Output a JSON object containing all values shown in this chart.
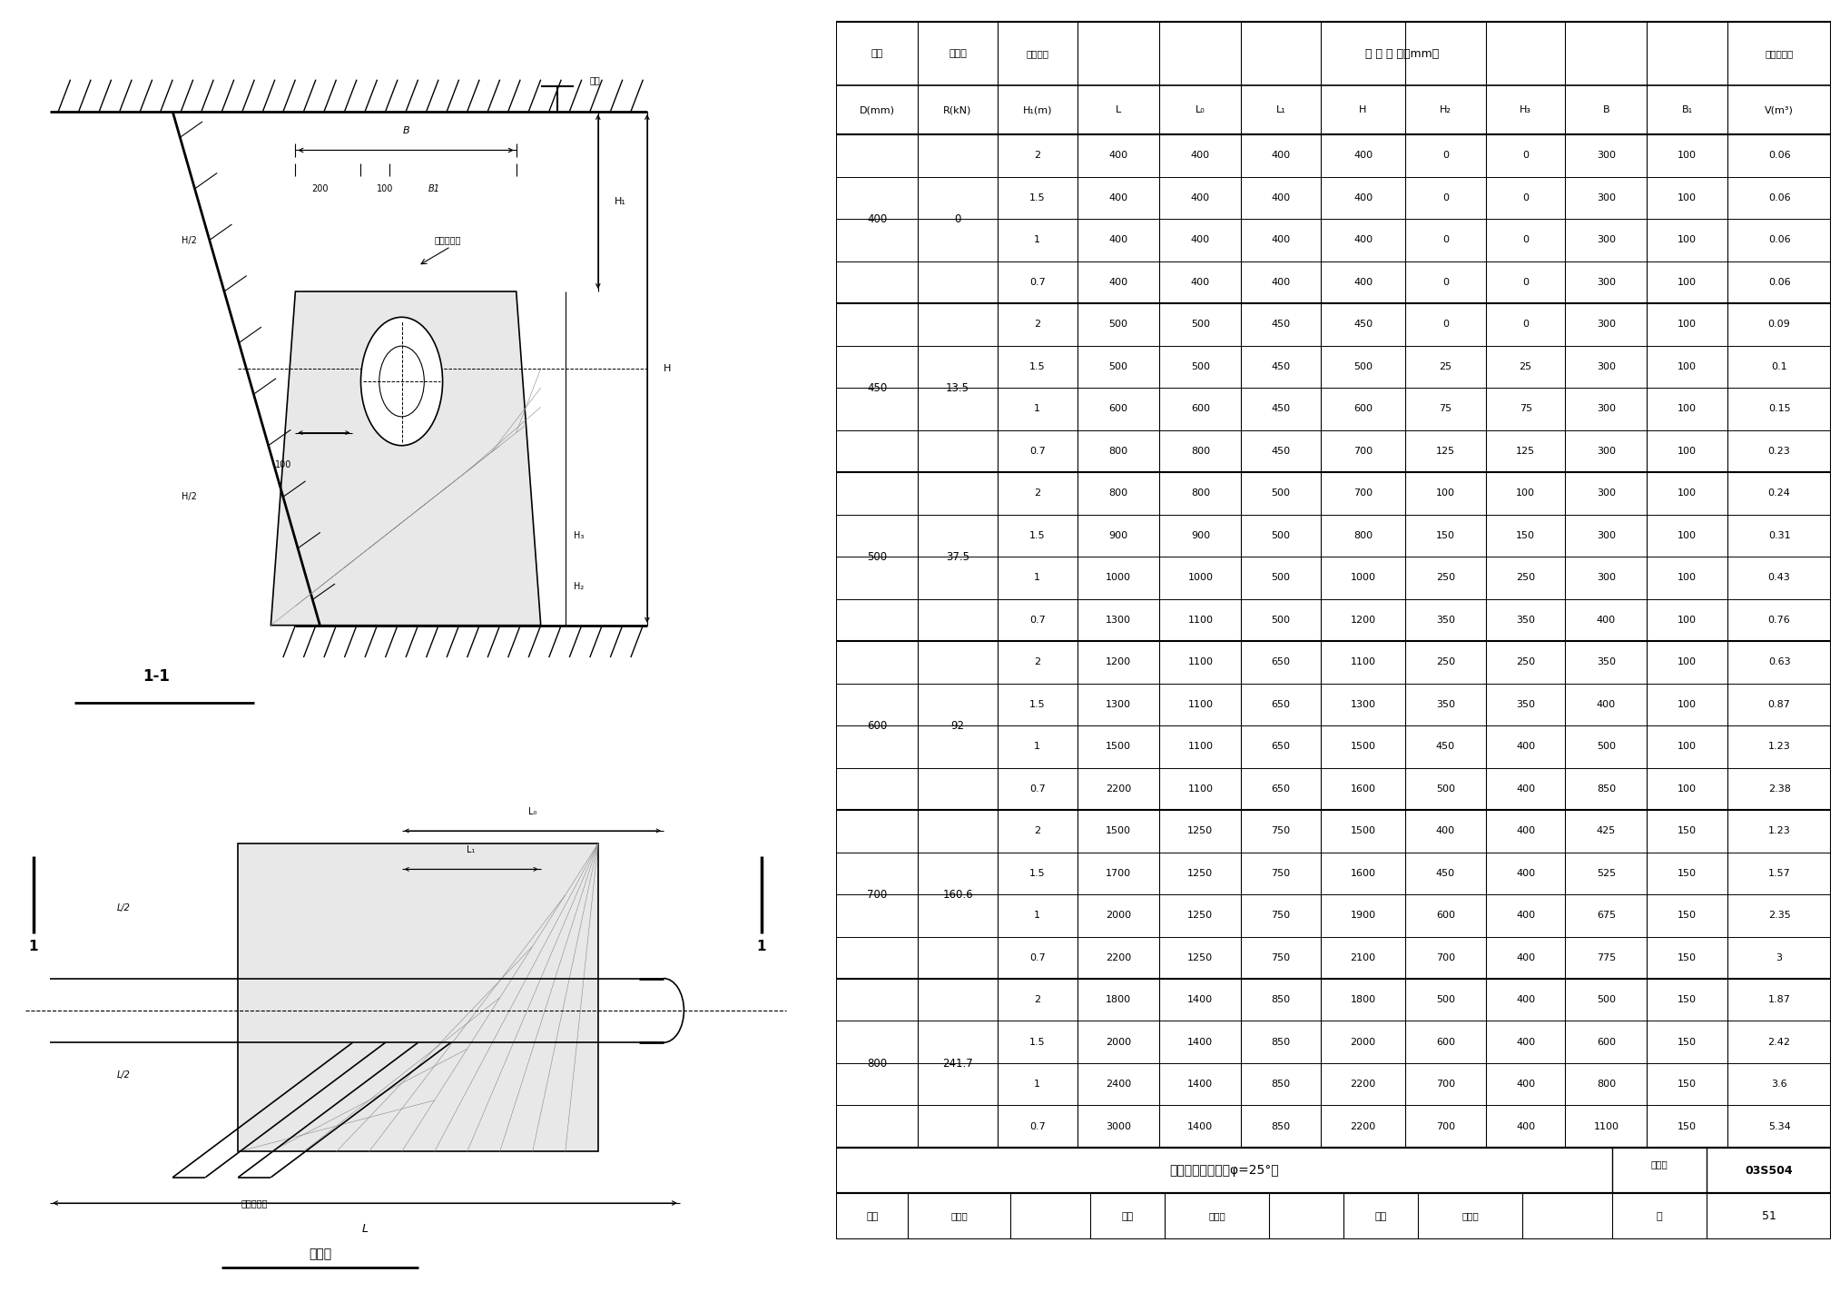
{
  "title": "水平叉管支墩图（φ=25°）",
  "atlas_no": "03S504",
  "page": "51",
  "table_data": [
    [
      400,
      "0",
      2,
      400,
      400,
      400,
      400,
      0,
      0,
      300,
      100,
      "0.06"
    ],
    [
      400,
      "0",
      1.5,
      400,
      400,
      400,
      400,
      0,
      0,
      300,
      100,
      "0.06"
    ],
    [
      400,
      "0",
      1,
      400,
      400,
      400,
      400,
      0,
      0,
      300,
      100,
      "0.06"
    ],
    [
      400,
      "0",
      0.7,
      400,
      400,
      400,
      400,
      0,
      0,
      300,
      100,
      "0.06"
    ],
    [
      450,
      "13.5",
      2,
      500,
      500,
      450,
      450,
      0,
      0,
      300,
      100,
      "0.09"
    ],
    [
      450,
      "13.5",
      1.5,
      500,
      500,
      450,
      500,
      25,
      25,
      300,
      100,
      "0.1"
    ],
    [
      450,
      "13.5",
      1,
      600,
      600,
      450,
      600,
      75,
      75,
      300,
      100,
      "0.15"
    ],
    [
      450,
      "13.5",
      0.7,
      800,
      800,
      450,
      700,
      125,
      125,
      300,
      100,
      "0.23"
    ],
    [
      500,
      "37.5",
      2,
      800,
      800,
      500,
      700,
      100,
      100,
      300,
      100,
      "0.24"
    ],
    [
      500,
      "37.5",
      1.5,
      900,
      900,
      500,
      800,
      150,
      150,
      300,
      100,
      "0.31"
    ],
    [
      500,
      "37.5",
      1,
      1000,
      1000,
      500,
      1000,
      250,
      250,
      300,
      100,
      "0.43"
    ],
    [
      500,
      "37.5",
      0.7,
      1300,
      1100,
      500,
      1200,
      350,
      350,
      400,
      100,
      "0.76"
    ],
    [
      600,
      "92",
      2,
      1200,
      1100,
      650,
      1100,
      250,
      250,
      350,
      100,
      "0.63"
    ],
    [
      600,
      "92",
      1.5,
      1300,
      1100,
      650,
      1300,
      350,
      350,
      400,
      100,
      "0.87"
    ],
    [
      600,
      "92",
      1,
      1500,
      1100,
      650,
      1500,
      450,
      400,
      500,
      100,
      "1.23"
    ],
    [
      600,
      "92",
      0.7,
      2200,
      1100,
      650,
      1600,
      500,
      400,
      850,
      100,
      "2.38"
    ],
    [
      700,
      "160.6",
      2,
      1500,
      1250,
      750,
      1500,
      400,
      400,
      425,
      150,
      "1.23"
    ],
    [
      700,
      "160.6",
      1.5,
      1700,
      1250,
      750,
      1600,
      450,
      400,
      525,
      150,
      "1.57"
    ],
    [
      700,
      "160.6",
      1,
      2000,
      1250,
      750,
      1900,
      600,
      400,
      675,
      150,
      "2.35"
    ],
    [
      700,
      "160.6",
      0.7,
      2200,
      1250,
      750,
      2100,
      700,
      400,
      775,
      150,
      "3"
    ],
    [
      800,
      "241.7",
      2,
      1800,
      1400,
      850,
      1800,
      500,
      400,
      500,
      150,
      "1.87"
    ],
    [
      800,
      "241.7",
      1.5,
      2000,
      1400,
      850,
      2000,
      600,
      400,
      600,
      150,
      "2.42"
    ],
    [
      800,
      "241.7",
      1,
      2400,
      1400,
      850,
      2200,
      700,
      400,
      800,
      150,
      "3.6"
    ],
    [
      800,
      "241.7",
      0.7,
      3000,
      1400,
      850,
      2200,
      700,
      400,
      1100,
      150,
      "5.34"
    ]
  ],
  "bg_color": "#ffffff",
  "lc": "#000000"
}
